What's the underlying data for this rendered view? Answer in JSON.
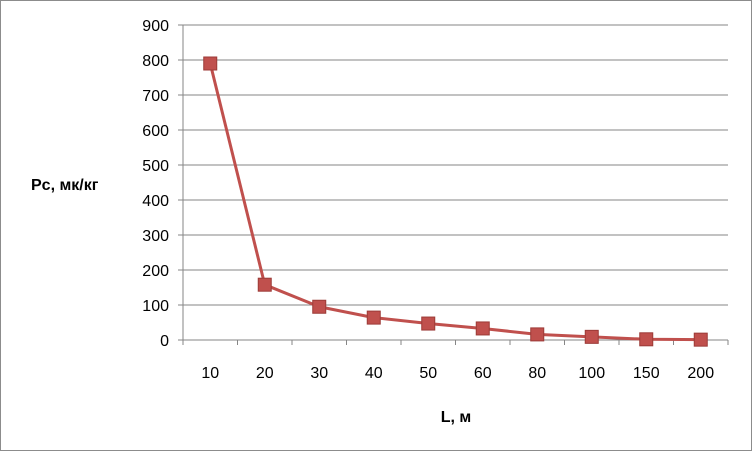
{
  "chart_data": {
    "type": "line",
    "title": "",
    "xlabel": "L, м",
    "ylabel": "Рс, мк/кг",
    "categories": [
      "10",
      "20",
      "30",
      "40",
      "50",
      "60",
      "80",
      "100",
      "150",
      "200"
    ],
    "series": [
      {
        "values": [
          790,
          158,
          95,
          64,
          47,
          33,
          16,
          9,
          2,
          1
        ]
      }
    ],
    "ylim": [
      0,
      900
    ],
    "yticks": [
      "0",
      "100",
      "200",
      "300",
      "400",
      "500",
      "600",
      "700",
      "800",
      "900"
    ],
    "grid": "horizontal",
    "legend": "none",
    "colors": {
      "series": "#C0504D",
      "marker_fill": "#C0504D",
      "grid": "#868686",
      "axis": "#868686"
    }
  }
}
